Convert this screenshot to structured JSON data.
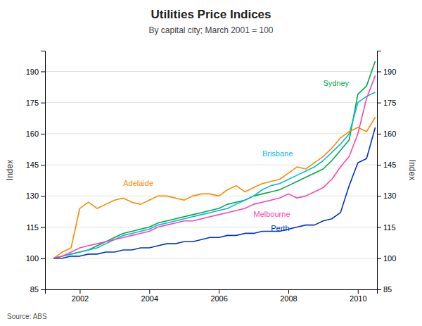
{
  "chart_data": {
    "type": "line",
    "title": "Utilities Price Indices",
    "subtitle": "By capital city; March 2001 = 100",
    "y_label": "Index",
    "y2_label": "Index",
    "source": "Source: ABS",
    "x": [
      2001.25,
      2001.5,
      2001.75,
      2002.0,
      2002.25,
      2002.5,
      2002.75,
      2003.0,
      2003.25,
      2003.5,
      2003.75,
      2004.0,
      2004.25,
      2004.5,
      2004.75,
      2005.0,
      2005.25,
      2005.5,
      2005.75,
      2006.0,
      2006.25,
      2006.5,
      2006.75,
      2007.0,
      2007.25,
      2007.5,
      2007.75,
      2008.0,
      2008.25,
      2008.5,
      2008.75,
      2009.0,
      2009.25,
      2009.5,
      2009.75,
      2010.0,
      2010.25,
      2010.5
    ],
    "series": [
      {
        "name": "Sydney",
        "color": "#00aa44",
        "values": [
          100,
          101,
          102,
          103,
          104,
          106,
          108,
          110,
          112,
          113,
          114,
          115,
          117,
          118,
          119,
          120,
          121,
          122,
          123,
          124,
          126,
          127,
          128,
          130,
          131,
          132,
          133,
          135,
          137,
          139,
          141,
          143,
          147,
          152,
          157,
          179,
          183,
          195
        ]
      },
      {
        "name": "Brisbane",
        "color": "#00bbdd",
        "values": [
          100,
          101,
          102,
          103,
          104,
          105,
          107,
          109,
          111,
          112,
          113,
          114,
          116,
          117,
          118,
          119,
          120,
          121,
          122,
          123,
          124,
          126,
          128,
          130,
          133,
          135,
          136,
          138,
          140,
          142,
          144,
          147,
          151,
          155,
          160,
          175,
          178,
          180
        ]
      },
      {
        "name": "Adelaide",
        "color": "#ff8800",
        "values": [
          100,
          103,
          105,
          124,
          127,
          124,
          126,
          128,
          129,
          127,
          126,
          128,
          130,
          130,
          129,
          128,
          130,
          131,
          131,
          130,
          133,
          135,
          132,
          134,
          136,
          137,
          138,
          141,
          144,
          143,
          146,
          149,
          153,
          158,
          161,
          163,
          161,
          168
        ]
      },
      {
        "name": "Melbourne",
        "color": "#ff44aa",
        "values": [
          100,
          101,
          103,
          105,
          106,
          107,
          108,
          109,
          110,
          111,
          112,
          113,
          115,
          116,
          117,
          118,
          118,
          119,
          120,
          121,
          122,
          123,
          124,
          126,
          127,
          128,
          129,
          131,
          129,
          130,
          132,
          134,
          138,
          144,
          149,
          160,
          177,
          188
        ]
      },
      {
        "name": "Perth",
        "color": "#0033cc",
        "values": [
          100,
          100,
          101,
          101,
          102,
          102,
          103,
          103,
          104,
          104,
          105,
          105,
          106,
          107,
          107,
          108,
          108,
          109,
          110,
          110,
          111,
          111,
          112,
          112,
          113,
          113,
          113,
          114,
          115,
          116,
          116,
          118,
          119,
          122,
          135,
          146,
          148,
          163
        ]
      }
    ],
    "annotations": [
      {
        "text": "Sydney",
        "x": 2009.0,
        "y": 183
      },
      {
        "text": "Brisbane",
        "x": 2007.25,
        "y": 149
      },
      {
        "text": "Adelaide",
        "x": 2003.25,
        "y": 135
      },
      {
        "text": "Melbourne",
        "x": 2007.0,
        "y": 120
      },
      {
        "text": "Perth",
        "x": 2007.5,
        "y": 113
      }
    ],
    "xlim": [
      2001.0,
      2010.55
    ],
    "xticks": [
      2002,
      2004,
      2006,
      2008,
      2010
    ],
    "ylim": [
      85,
      200
    ],
    "yticks": [
      85,
      100,
      115,
      130,
      145,
      160,
      175,
      190
    ],
    "y2lim": [
      85,
      200
    ],
    "y2ticks": [
      85,
      100,
      115,
      130,
      145,
      160,
      175,
      190
    ],
    "grid": true
  }
}
